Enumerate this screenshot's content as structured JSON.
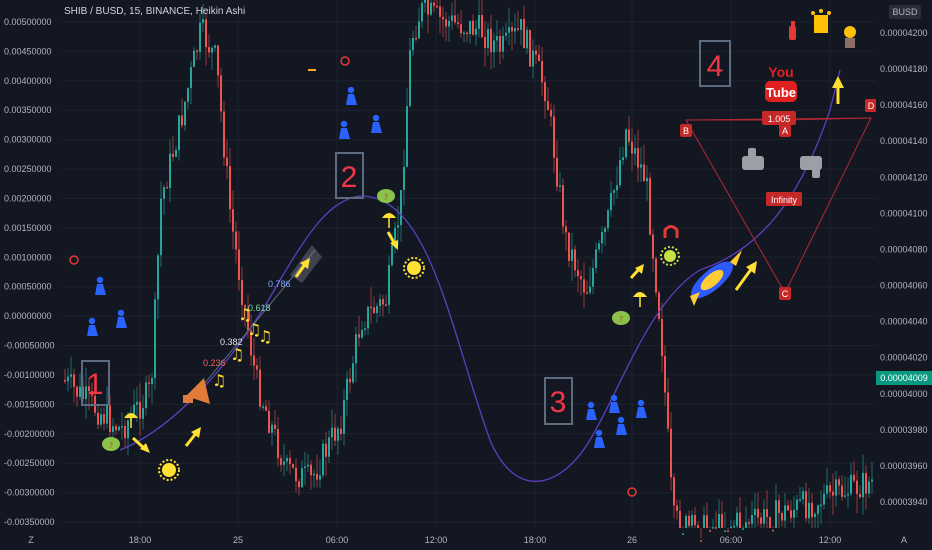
{
  "header": {
    "title": "SHIB / BUSD, 15, BINANCE, Heikin Ashi"
  },
  "chart_data": {
    "type": "candlestick",
    "title": "SHIB / BUSD, 15, BINANCE, Heikin Ashi",
    "currency_label": "BUSD",
    "left_axis": {
      "ticks": [
        "0.00500000",
        "0.00450000",
        "0.00400000",
        "0.00350000",
        "0.00300000",
        "0.00250000",
        "0.00200000",
        "0.00150000",
        "0.00100000",
        "0.00050000",
        "0.00000000",
        "-0.00050000",
        "-0.00100000",
        "-0.00150000",
        "-0.00200000",
        "-0.00250000",
        "-0.00300000",
        "-0.00350000"
      ],
      "range": [
        -0.0036,
        0.0052
      ]
    },
    "right_axis": {
      "ticks": [
        "0.00004200",
        "0.00004180",
        "0.00004160",
        "0.00004140",
        "0.00004120",
        "0.00004100",
        "0.00004080",
        "0.00004060",
        "0.00004040",
        "0.00004020",
        "0.00004000",
        "0.00003980",
        "0.00003960",
        "0.00003940"
      ],
      "range": [
        3.925e-05,
        4.213e-05
      ],
      "current_price": "0.00004009"
    },
    "x_axis": {
      "ticks": [
        "18:00",
        "25",
        "06:00",
        "12:00",
        "18:00",
        "26",
        "06:00",
        "12:00"
      ],
      "left_corner": "Z",
      "right_corner": "A"
    },
    "annotations": {
      "wave_labels": [
        "1",
        "2",
        "3",
        "4"
      ],
      "fib_levels": [
        "0.786",
        "0.618",
        "0.382",
        "0.236"
      ],
      "pattern_points": [
        "A",
        "B",
        "C",
        "D"
      ],
      "ab_value": "1.005",
      "cd_label": "Infinity",
      "youtube_text": [
        "You",
        "Tube"
      ]
    },
    "colors": {
      "background": "#131722",
      "up": "#26a69a",
      "down": "#ef5350",
      "price_tag": "#089981",
      "pattern": "#b22833",
      "wave_line": "#5b3fbf",
      "box_border": "#5d6b7e",
      "arrow": "#ffe033",
      "person": "#2962ff"
    }
  }
}
